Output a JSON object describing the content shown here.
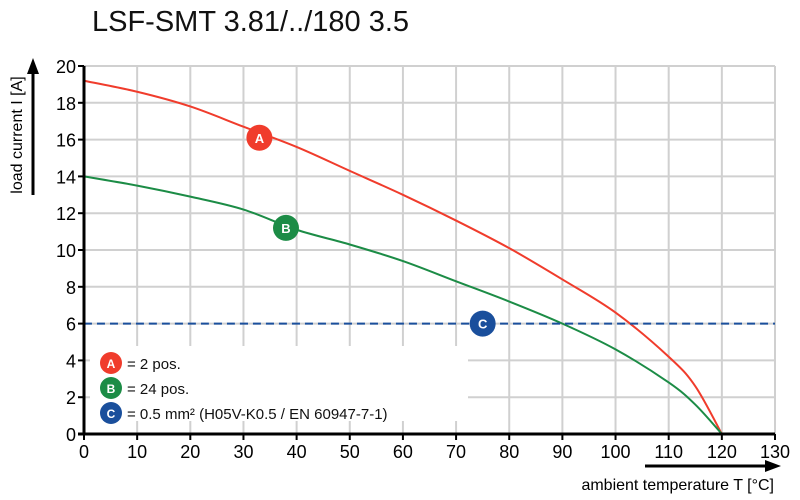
{
  "chart_data": {
    "type": "line",
    "title": "LSF-SMT 3.81/../180 3.5",
    "xlabel": "ambient temperature T [°C]",
    "ylabel": "load current I [A]",
    "xlim": [
      0,
      130
    ],
    "ylim": [
      0,
      20
    ],
    "xticks": [
      0,
      10,
      20,
      30,
      40,
      50,
      60,
      70,
      80,
      90,
      100,
      110,
      120,
      130
    ],
    "yticks": [
      0,
      2,
      4,
      6,
      8,
      10,
      12,
      14,
      16,
      18,
      20
    ],
    "grid": true,
    "legend_position": "bottom-left",
    "series": [
      {
        "marker": "A",
        "name": "= 2 pos.",
        "color": "#f03c2c",
        "marker_at": [
          33,
          16.1
        ],
        "x": [
          0,
          10,
          20,
          30,
          40,
          50,
          60,
          70,
          80,
          90,
          100,
          110,
          115,
          120
        ],
        "y": [
          19.2,
          18.6,
          17.8,
          16.7,
          15.6,
          14.3,
          13.0,
          11.6,
          10.1,
          8.4,
          6.6,
          4.2,
          2.6,
          0
        ]
      },
      {
        "marker": "B",
        "name": "= 24 pos.",
        "color": "#1c8c46",
        "marker_at": [
          38,
          11.2
        ],
        "x": [
          0,
          10,
          20,
          30,
          40,
          50,
          60,
          70,
          80,
          90,
          100,
          110,
          115,
          120
        ],
        "y": [
          14.0,
          13.5,
          12.9,
          12.2,
          11.1,
          10.3,
          9.4,
          8.3,
          7.2,
          6.0,
          4.6,
          2.8,
          1.6,
          0
        ]
      },
      {
        "marker": "C",
        "name": "= 0.5 mm² (H05V-K0.5 / EN 60947-7-1)",
        "color": "#1a4f9c",
        "marker_at": [
          75,
          6
        ],
        "style": "dashed",
        "x": [
          0,
          130
        ],
        "y": [
          6,
          6
        ]
      }
    ]
  }
}
